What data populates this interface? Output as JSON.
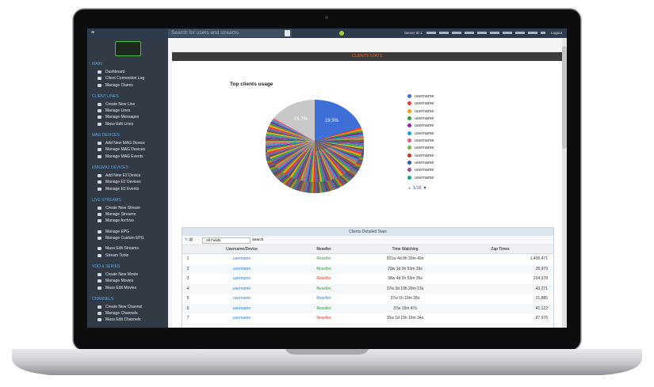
{
  "topbar": {
    "search_placeholder": "Search for users and streams",
    "server": "Server ID 1",
    "logout": "Logout"
  },
  "sidebar": {
    "sections": [
      {
        "title": "MAIN",
        "groups": [
          [
            "Dashboard",
            "Client Connection Log",
            "Manage Claims"
          ]
        ]
      },
      {
        "title": "CLIENT LINES",
        "groups": [
          [
            "Create New Line",
            "Manage Lines",
            "Manage Messages",
            "Mass Edit Lines"
          ]
        ]
      },
      {
        "title": "MAG DEVICES",
        "groups": [
          [
            "Add New MAG Device",
            "Manage MAG Devices",
            "Manage MAG Events"
          ]
        ]
      },
      {
        "title": "ENIGMA2 DEVICES",
        "groups": [
          [
            "Add New E2 Device",
            "Manage E2 Devices",
            "Manage E2 Events"
          ]
        ]
      },
      {
        "title": "LIVE STREAMS",
        "groups": [
          [
            "Create New Stream",
            "Manage Streams",
            "Manage Archive"
          ],
          [
            "Manage EPG",
            "Manage Custom EPG"
          ],
          [
            "Mass Edit Streams",
            "Stream Tools"
          ]
        ]
      },
      {
        "title": "VOD & SERIES",
        "groups": [
          [
            "Create New Movie",
            "Manage Movies",
            "Mass Edit Movies"
          ]
        ]
      },
      {
        "title": "CHANNELS",
        "groups": [
          [
            "Create New Channel",
            "Manage Channels",
            "Mass Edit Channels"
          ]
        ]
      }
    ]
  },
  "stats_panel": {
    "title": "CLIENTS STATS",
    "chart_title": "Top clients usage",
    "slices": [
      {
        "value": 19.5,
        "value_label": "19.5%",
        "color": "#3d6fd6"
      },
      {
        "value": 15.7,
        "value_label": "15.7%",
        "color": "#c8c8c8"
      }
    ],
    "legend": [
      {
        "name": "username",
        "color": "#3d6fd6"
      },
      {
        "name": "username",
        "color": "#e53935"
      },
      {
        "name": "username",
        "color": "#f39c12"
      },
      {
        "name": "username",
        "color": "#2e9e3a"
      },
      {
        "name": "username",
        "color": "#8e24aa"
      },
      {
        "name": "username",
        "color": "#1ba3c6"
      },
      {
        "name": "username",
        "color": "#e8567c"
      },
      {
        "name": "username",
        "color": "#7cb342"
      },
      {
        "name": "username",
        "color": "#c0392b"
      },
      {
        "name": "username",
        "color": "#2c5aa0"
      },
      {
        "name": "username",
        "color": "#9c4f9c"
      },
      {
        "name": "username",
        "color": "#17a589"
      }
    ],
    "pager": "1/16"
  },
  "table": {
    "title": "Clients Detailed Stats",
    "filter": "All Fields",
    "search": "Search",
    "columns": [
      "Username/Device",
      "Reseller",
      "Time Watching",
      "Zap Times"
    ],
    "rows": [
      [
        "1",
        "username",
        "Reseller",
        "921w 4d 0h 20m 49s",
        "1,400,471"
      ],
      [
        "2",
        "username",
        "Reseller",
        "29w 1d 0h 53m 39s",
        "35,979"
      ],
      [
        "3",
        "username",
        "Reseller",
        "38w 4d 0h 53m 35s",
        "204,378"
      ],
      [
        "4",
        "username",
        "Reseller",
        "37w 3d 10h 29m 13s",
        "43,271"
      ],
      [
        "5",
        "username",
        "Reseller",
        "37w 1h 19m 28s",
        "21,885"
      ],
      [
        "6",
        "username",
        "Reseller",
        "37w 15m 47s",
        "41,122"
      ],
      [
        "7",
        "username",
        "Reseller",
        "35w 1d 15h 19m 34s",
        "87,976"
      ]
    ],
    "reseller_colors": [
      "#2e9e3a",
      "#2e9e3a",
      "#d9342b",
      "#2e9e3a",
      "#2a7fd4",
      "#2e9e3a",
      "#d9342b"
    ]
  }
}
